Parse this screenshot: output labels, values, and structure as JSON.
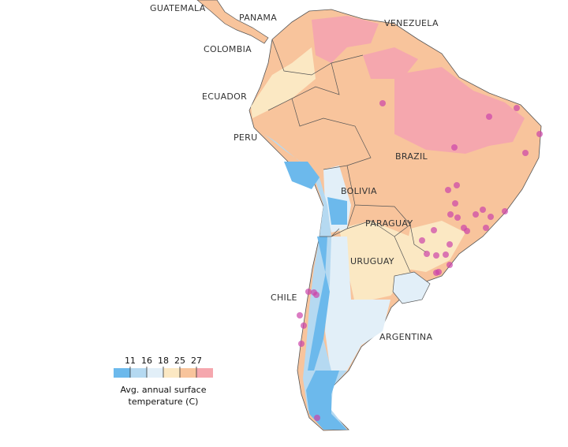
{
  "labels": [
    "GUATEMALA",
    "PANAMA",
    "VENEZUELA",
    "COLOMBIA",
    "ECUADOR",
    "PERU",
    "BRAZIL",
    "BOLIVIA",
    "PARAGUAY",
    "URUGUAY",
    "CHILE",
    "ARGENTINA"
  ],
  "legend": {
    "ticks": [
      11,
      16,
      18,
      25,
      27
    ],
    "colors": [
      "#6cb9ec",
      "#b5d9f1",
      "#e2eff8",
      "#fbe8c3",
      "#f8c49c",
      "#f5a7ae"
    ],
    "title": [
      "Avg. annual surface",
      "temperature (C)"
    ]
  }
}
